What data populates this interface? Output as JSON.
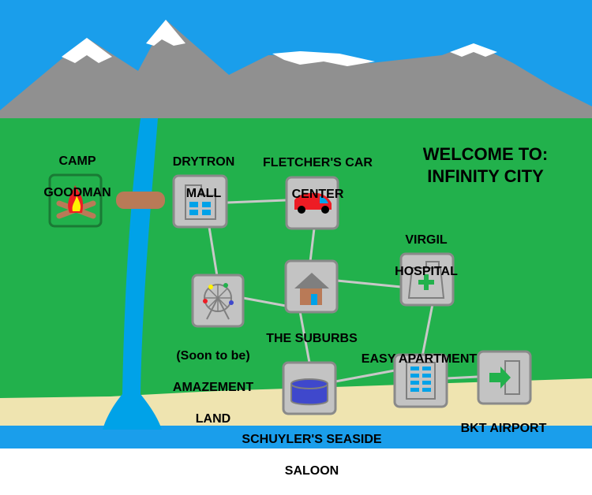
{
  "title": {
    "line1": "WELCOME TO:",
    "line2": "INFINITY CITY"
  },
  "locations": {
    "camp": {
      "line1": "CAMP",
      "line2": "GOODMAN",
      "icon": "campfire-icon"
    },
    "mall": {
      "line1": "DRYTRON",
      "line2": "MALL",
      "icon": "building-icon"
    },
    "car": {
      "line1": "FLETCHER'S CAR",
      "line2": "CENTER",
      "icon": "car-icon"
    },
    "hospital": {
      "line1": "VIRGIL",
      "line2": "HOSPITAL",
      "icon": "hospital-icon"
    },
    "suburbs": {
      "line1": "THE SUBURBS",
      "icon": "house-icon"
    },
    "amazement": {
      "line1": "(Soon to be)",
      "line2": "AMAZEMENT",
      "line3": "LAND",
      "icon": "ferris-wheel-icon"
    },
    "apartment": {
      "line1": "EASY APARTMENT",
      "icon": "apartment-icon"
    },
    "airport": {
      "line1": "BKT AIRPORT",
      "icon": "exit-icon"
    },
    "saloon": {
      "line1": "SCHUYLER'S SEASIDE",
      "line2": "SALOON",
      "icon": "barrel-icon"
    }
  },
  "colors": {
    "sky": "#1a9eeb",
    "grass": "#22b14c",
    "mountain": "#909090",
    "sand": "#efe4b0",
    "river": "#00a2e8"
  }
}
